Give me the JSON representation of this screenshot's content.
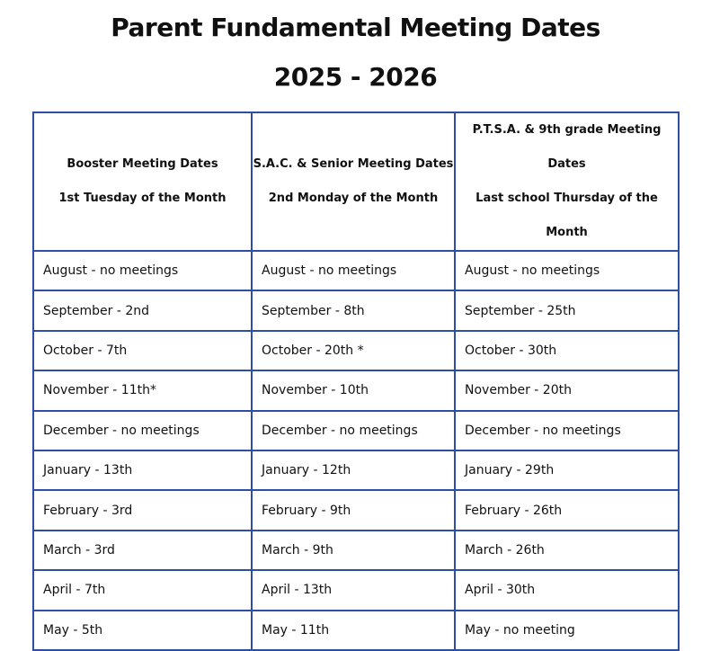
{
  "header": {
    "title": "Parent Fundamental Meeting Dates",
    "subtitle": "2025 - 2026"
  },
  "table": {
    "header": [
      [
        "Booster Meeting Dates",
        "1st Tuesday of the Month"
      ],
      [
        "S.A.C. & Senior Meeting Dates",
        "2nd Monday of the Month"
      ],
      [
        "P.T.S.A. & 9th grade Meeting Dates",
        "Last school Thursday of the Month"
      ]
    ],
    "rows": [
      [
        "August - no meetings",
        "August - no meetings",
        "August - no meetings"
      ],
      [
        "September - 2nd",
        "September - 8th",
        "September - 25th"
      ],
      [
        "October - 7th",
        "October - 20th *",
        "October - 30th"
      ],
      [
        "November - 11th*",
        "November - 10th",
        "November - 20th"
      ],
      [
        "December - no meetings",
        "December - no meetings",
        "December - no meetings"
      ],
      [
        "January - 13th",
        "January - 12th",
        "January - 29th"
      ],
      [
        "February - 3rd",
        "February - 9th",
        "February - 26th"
      ],
      [
        "March - 3rd",
        "March - 9th",
        "March - 26th"
      ],
      [
        "April - 7th",
        "April - 13th",
        "April - 30th"
      ],
      [
        "May - 5th",
        "May - 11th",
        "May - no meeting"
      ]
    ]
  }
}
